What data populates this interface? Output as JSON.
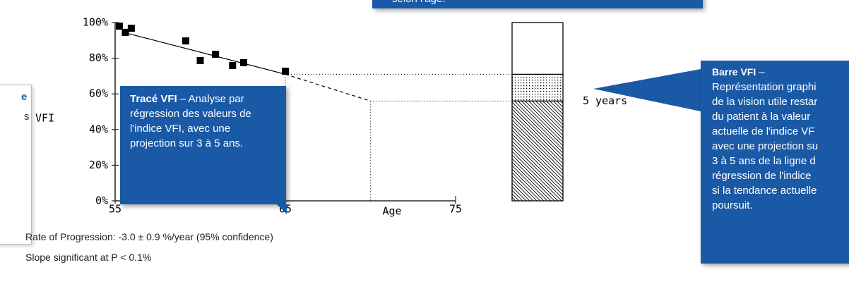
{
  "chart_data": {
    "type": "scatter",
    "x_label": "Age",
    "y_label": "VFI",
    "xlim": [
      55,
      75
    ],
    "ylim": [
      0,
      100
    ],
    "xticks": [
      55,
      65,
      75
    ],
    "yticks": [
      {
        "value": 0,
        "label": "0%"
      },
      {
        "value": 20,
        "label": "20%"
      },
      {
        "value": 40,
        "label": "40%"
      },
      {
        "value": 60,
        "label": "60%"
      },
      {
        "value": 80,
        "label": "80%"
      },
      {
        "value": 100,
        "label": "100%"
      }
    ],
    "x": [
      55.25,
      55.6,
      55.95,
      59.15,
      60.0,
      60.9,
      61.9,
      62.55,
      65.0
    ],
    "values": [
      98,
      94.5,
      96.8,
      89.7,
      78.7,
      82.2,
      75.9,
      77.5,
      72.7
    ],
    "color": "#000000",
    "trend": {
      "x": [
        55.5,
        65
      ],
      "values": [
        94.5,
        71
      ]
    },
    "projection": {
      "x": [
        65,
        70
      ],
      "values": [
        71,
        56
      ],
      "label": "5 years"
    },
    "vfi_bar": {
      "values": [
        56,
        15,
        29
      ]
    },
    "notes": [
      "Rate of Progression: -3.0 ± 0.9 %/year (95% confidence)",
      "Slope significant at P < 0.1%"
    ]
  },
  "callouts": {
    "top": {
      "text": "selon l'âge."
    },
    "left": {
      "lines": [
        "e",
        "s"
      ]
    },
    "trace": {
      "title": "Tracé VFI",
      "body": "– Analyse par régression des valeurs de l'indice VFI, avec une projection sur 3 à 5 ans."
    },
    "bar": {
      "title": "Barre VFI",
      "dash": "–",
      "lines": [
        "Représentation graphi",
        "de la vision utile restar",
        "du patient à la valeur",
        "actuelle de l'indice VF",
        "avec une projection su",
        "3 à 5 ans de la ligne d",
        "régression de l'indice",
        "si la tendance actuelle",
        "poursuit."
      ]
    }
  }
}
